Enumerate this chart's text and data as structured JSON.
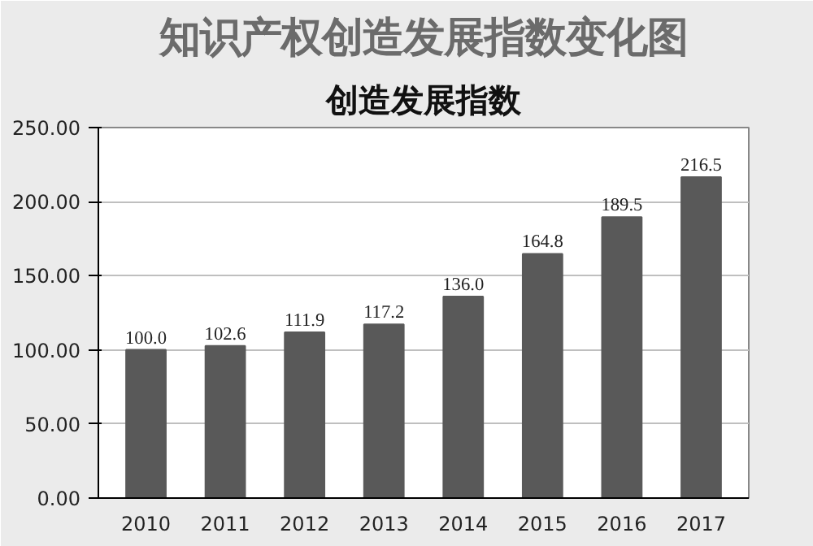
{
  "chart_data": {
    "type": "bar",
    "title": "知识产权创造发展指数变化图",
    "subtitle": "创造发展指数",
    "categories": [
      "2010",
      "2011",
      "2012",
      "2013",
      "2014",
      "2015",
      "2016",
      "2017"
    ],
    "values": [
      100.0,
      102.6,
      111.9,
      117.2,
      136.0,
      164.8,
      189.5,
      216.5
    ],
    "value_labels": [
      "100.0",
      "102.6",
      "111.9",
      "117.2",
      "136.0",
      "164.8",
      "189.5",
      "216.5"
    ],
    "color": "#595959",
    "ylim": [
      0,
      250
    ],
    "yticks": [
      {
        "value": 0,
        "label": "0.00"
      },
      {
        "value": 50,
        "label": "50.00"
      },
      {
        "value": 100,
        "label": "100.00"
      },
      {
        "value": 150,
        "label": "150.00"
      },
      {
        "value": 200,
        "label": "200.00"
      },
      {
        "value": 250,
        "label": "250.00"
      }
    ],
    "grid": "y"
  }
}
